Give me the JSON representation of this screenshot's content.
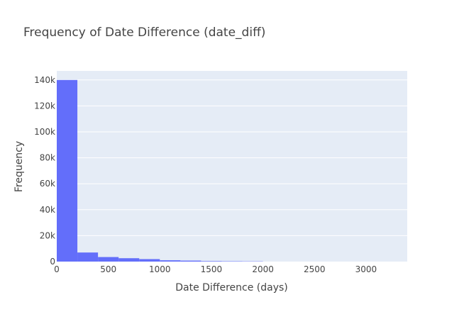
{
  "chart_data": {
    "type": "bar",
    "title": "Frequency of Date Difference (date_diff)",
    "xlabel": "Date Difference (days)",
    "ylabel": "Frequency",
    "xlim": [
      0,
      3400
    ],
    "ylim": [
      0,
      147000
    ],
    "bin_width": 200,
    "bins": [
      {
        "start": 0,
        "end": 200,
        "count": 140000
      },
      {
        "start": 200,
        "end": 400,
        "count": 7000
      },
      {
        "start": 400,
        "end": 600,
        "count": 3500
      },
      {
        "start": 600,
        "end": 800,
        "count": 2600
      },
      {
        "start": 800,
        "end": 1000,
        "count": 1900
      },
      {
        "start": 1000,
        "end": 1200,
        "count": 1000
      },
      {
        "start": 1200,
        "end": 1400,
        "count": 750
      },
      {
        "start": 1400,
        "end": 1600,
        "count": 380
      },
      {
        "start": 1600,
        "end": 1800,
        "count": 270
      },
      {
        "start": 1800,
        "end": 2000,
        "count": 200
      },
      {
        "start": 2000,
        "end": 2200,
        "count": 0
      },
      {
        "start": 2200,
        "end": 2400,
        "count": 0
      },
      {
        "start": 2400,
        "end": 2600,
        "count": 0
      },
      {
        "start": 2600,
        "end": 2800,
        "count": 0
      },
      {
        "start": 2800,
        "end": 3000,
        "count": 0
      },
      {
        "start": 3000,
        "end": 3200,
        "count": 0
      },
      {
        "start": 3200,
        "end": 3400,
        "count": 0
      }
    ],
    "x_ticks": [
      {
        "value": 0,
        "label": "0"
      },
      {
        "value": 500,
        "label": "500"
      },
      {
        "value": 1000,
        "label": "1000"
      },
      {
        "value": 1500,
        "label": "1500"
      },
      {
        "value": 2000,
        "label": "2000"
      },
      {
        "value": 2500,
        "label": "2500"
      },
      {
        "value": 3000,
        "label": "3000"
      }
    ],
    "y_ticks": [
      {
        "value": 0,
        "label": "0"
      },
      {
        "value": 20000,
        "label": "20k"
      },
      {
        "value": 40000,
        "label": "40k"
      },
      {
        "value": 60000,
        "label": "60k"
      },
      {
        "value": 80000,
        "label": "80k"
      },
      {
        "value": 100000,
        "label": "100k"
      },
      {
        "value": 120000,
        "label": "120k"
      },
      {
        "value": 140000,
        "label": "140k"
      }
    ],
    "grid": true,
    "legend": "none",
    "colors": {
      "bar": "#636efa",
      "plot_background": "#e5ecf6",
      "grid": "#ffffff",
      "text": "#444444"
    }
  }
}
